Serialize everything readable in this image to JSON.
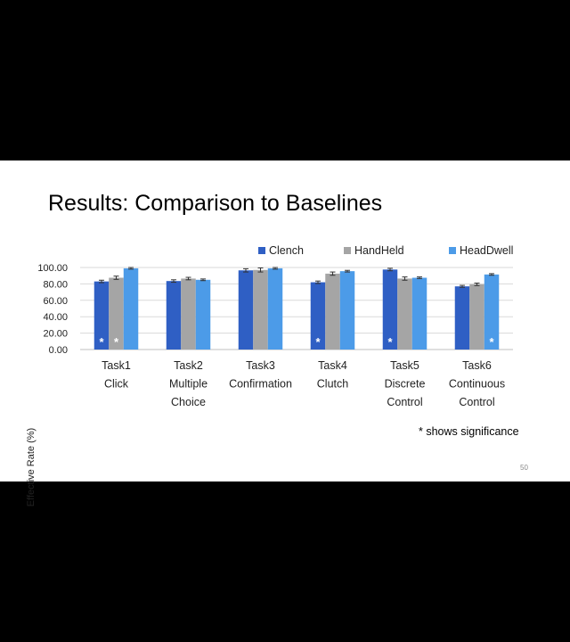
{
  "slide": {
    "title": "Results: Comparison to Baselines",
    "note": "* shows significance",
    "page_number": "50"
  },
  "chart_data": {
    "type": "bar",
    "ylabel": "Effective Rate (%)",
    "ylim": [
      0,
      100
    ],
    "yticks": [
      "0.00",
      "20.00",
      "40.00",
      "60.00",
      "80.00",
      "100.00"
    ],
    "categories": [
      [
        "Task1",
        "Click"
      ],
      [
        "Task2",
        "Multiple",
        "Choice"
      ],
      [
        "Task3",
        "Confirmation"
      ],
      [
        "Task4",
        "Clutch"
      ],
      [
        "Task5",
        "Discrete",
        "Control"
      ],
      [
        "Task6",
        "Continuous",
        "Control"
      ]
    ],
    "series": [
      {
        "name": "Clench",
        "color": "#2f5fc4",
        "values": [
          83.0,
          83.5,
          96.5,
          82.0,
          97.5,
          77.0
        ],
        "errors": [
          1.5,
          1.5,
          2.0,
          1.5,
          1.5,
          1.2
        ]
      },
      {
        "name": "HandHeld",
        "color": "#a5a5a5",
        "values": [
          87.5,
          86.5,
          97.0,
          92.5,
          86.5,
          79.5
        ],
        "errors": [
          2.0,
          1.5,
          2.5,
          2.0,
          2.0,
          1.5
        ]
      },
      {
        "name": "HeadDwell",
        "color": "#4c9be8",
        "values": [
          99.0,
          85.0,
          99.0,
          95.5,
          87.5,
          91.5
        ],
        "errors": [
          1.0,
          1.0,
          1.0,
          1.0,
          1.0,
          1.0
        ]
      }
    ],
    "significance": [
      {
        "category": 0,
        "series": 0,
        "label": "*"
      },
      {
        "category": 0,
        "series": 1,
        "label": "*"
      },
      {
        "category": 3,
        "series": 0,
        "label": "*"
      },
      {
        "category": 4,
        "series": 0,
        "label": "*"
      },
      {
        "category": 5,
        "series": 2,
        "label": "*"
      }
    ],
    "legend_position": "top",
    "grid": true
  }
}
